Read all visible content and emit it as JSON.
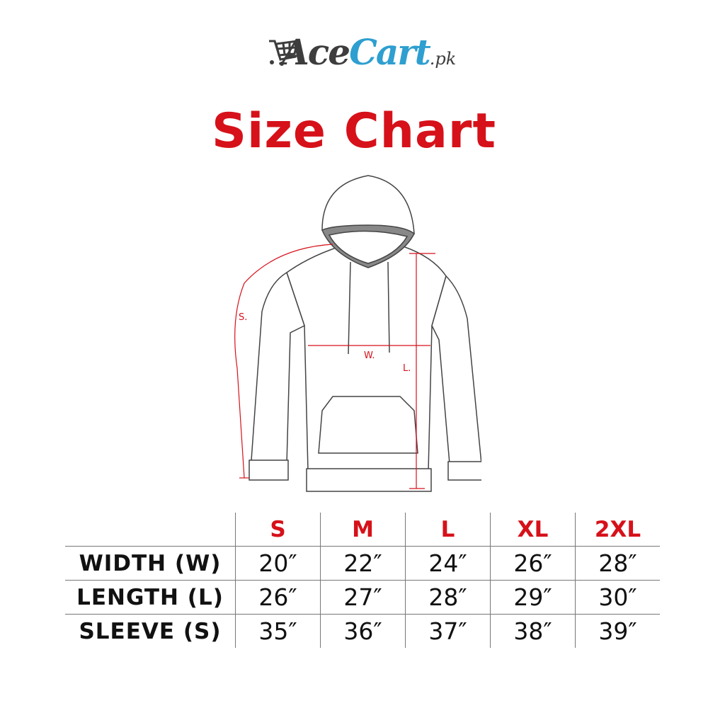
{
  "brand": {
    "name_part1": "Ace",
    "name_part2": "Cart",
    "suffix": ".pk",
    "accent": "#2e9fd0",
    "dark": "#3d3d3d"
  },
  "title": "Size Chart",
  "title_color": "#d6111a",
  "diagram": {
    "sleeve_label": "S.",
    "width_label": "W.",
    "length_label": "L."
  },
  "table": {
    "headers": [
      "S",
      "M",
      "L",
      "XL",
      "2XL"
    ],
    "rows": [
      {
        "label": "WIDTH (W)",
        "values": [
          "20″",
          "22″",
          "24″",
          "26″",
          "28″"
        ]
      },
      {
        "label": "LENGTH (L)",
        "values": [
          "26″",
          "27″",
          "28″",
          "29″",
          "30″"
        ]
      },
      {
        "label": "SLEEVE (S)",
        "values": [
          "35″",
          "36″",
          "37″",
          "38″",
          "39″"
        ]
      }
    ]
  }
}
